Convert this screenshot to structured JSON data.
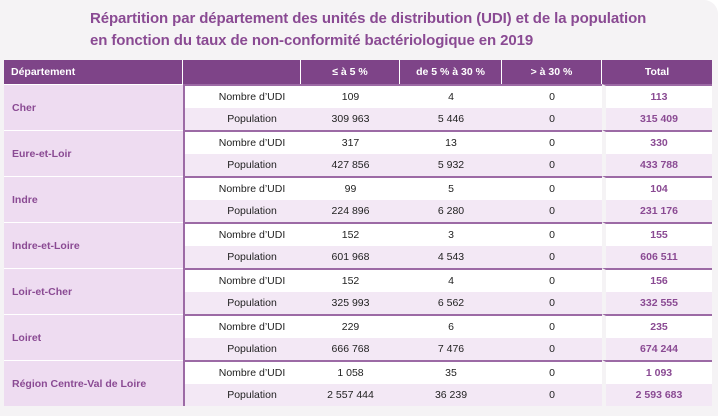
{
  "title": {
    "line1": "Répartition par département des unités de distribution (UDI) et de la population",
    "line2": "en fonction du taux de non-conformité bactériologique en 2019"
  },
  "table": {
    "headers": [
      "Département",
      "",
      "≤ à 5 %",
      "de 5 % à 30 %",
      "> à 30 %",
      "Total"
    ],
    "rows": [
      {
        "departement": "Cher",
        "udi": {
          "label": "Nombre d’UDI",
          "v1": "109",
          "v2": "4",
          "v3": "0",
          "total": "113"
        },
        "pop": {
          "label": "Population",
          "v1": "309 963",
          "v2": "5 446",
          "v3": "0",
          "total": "315 409"
        }
      },
      {
        "departement": "Eure-et-Loir",
        "udi": {
          "label": "Nombre d’UDI",
          "v1": "317",
          "v2": "13",
          "v3": "0",
          "total": "330"
        },
        "pop": {
          "label": "Population",
          "v1": "427 856",
          "v2": "5 932",
          "v3": "0",
          "total": "433 788"
        }
      },
      {
        "departement": "Indre",
        "udi": {
          "label": "Nombre d’UDI",
          "v1": "99",
          "v2": "5",
          "v3": "0",
          "total": "104"
        },
        "pop": {
          "label": "Population",
          "v1": "224 896",
          "v2": "6 280",
          "v3": "0",
          "total": "231 176"
        }
      },
      {
        "departement": "Indre-et-Loire",
        "udi": {
          "label": "Nombre d’UDI",
          "v1": "152",
          "v2": "3",
          "v3": "0",
          "total": "155"
        },
        "pop": {
          "label": "Population",
          "v1": "601 968",
          "v2": "4 543",
          "v3": "0",
          "total": "606 511"
        }
      },
      {
        "departement": "Loir-et-Cher",
        "udi": {
          "label": "Nombre d’UDI",
          "v1": "152",
          "v2": "4",
          "v3": "0",
          "total": "156"
        },
        "pop": {
          "label": "Population",
          "v1": "325 993",
          "v2": "6 562",
          "v3": "0",
          "total": "332 555"
        }
      },
      {
        "departement": "Loiret",
        "udi": {
          "label": "Nombre d’UDI",
          "v1": "229",
          "v2": "6",
          "v3": "0",
          "total": "235"
        },
        "pop": {
          "label": "Population",
          "v1": "666 768",
          "v2": "7 476",
          "v3": "0",
          "total": "674 244"
        }
      },
      {
        "departement": "Région Centre-Val de Loire",
        "udi": {
          "label": "Nombre d’UDI",
          "v1": "1 058",
          "v2": "35",
          "v3": "0",
          "total": "1 093"
        },
        "pop": {
          "label": "Population",
          "v1": "2 557 444",
          "v2": "36 239",
          "v3": "0",
          "total": "2 593 683"
        }
      }
    ]
  },
  "colors": {
    "accent": "#7e4488",
    "title": "#8a4a93",
    "row_band": "#eedcf1"
  }
}
